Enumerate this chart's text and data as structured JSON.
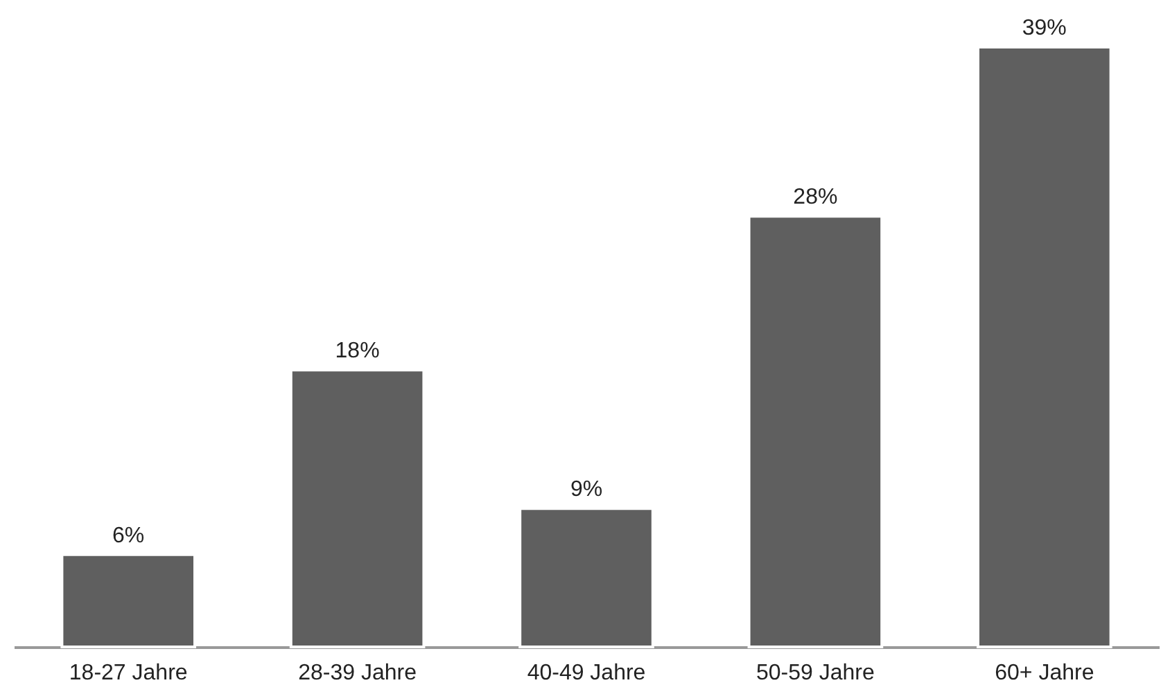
{
  "chart_data": {
    "type": "bar",
    "categories": [
      "18-27 Jahre",
      "28-39 Jahre",
      "40-49 Jahre",
      "50-59 Jahre",
      "60+ Jahre"
    ],
    "values": [
      6,
      18,
      9,
      28,
      39
    ],
    "value_labels": [
      "6%",
      "18%",
      "9%",
      "28%",
      "39%"
    ],
    "color": "#5f5f5f"
  }
}
